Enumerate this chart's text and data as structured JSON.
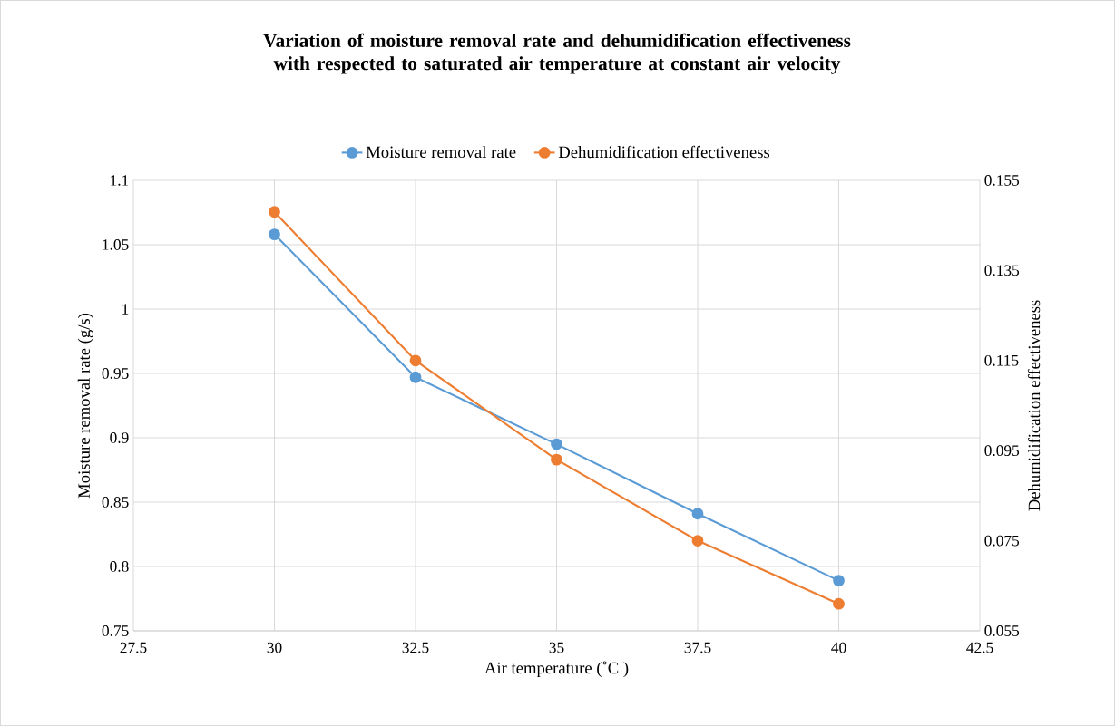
{
  "chart_data": {
    "type": "line",
    "title": "Variation of moisture removal rate and dehumidification effectiveness with respected to saturated air temperature at constant air velocity",
    "xlabel": "Air temperature (˚C )",
    "ylabel": "Moisture removal rate (g/s)",
    "y2label": "Dehumidification effectiveness",
    "x": [
      30,
      32.5,
      35,
      37.5,
      40
    ],
    "series": [
      {
        "name": "Moisture removal rate",
        "color": "#5b9bd5",
        "values": [
          1.058,
          0.947,
          0.895,
          0.841,
          0.789
        ]
      },
      {
        "name": "Dehumidification effectiveness",
        "color": "#ed7d31",
        "axis": "y2",
        "values": [
          0.148,
          0.115,
          0.093,
          0.075,
          0.061
        ]
      }
    ],
    "xlim": [
      27.5,
      42.5
    ],
    "xticks": [
      27.5,
      30,
      32.5,
      35,
      37.5,
      40,
      42.5
    ],
    "ylim": [
      0.75,
      1.1
    ],
    "yticks": [
      0.75,
      0.8,
      0.85,
      0.9,
      0.95,
      1,
      1.05,
      1.1
    ],
    "y2lim": [
      0.055,
      0.155
    ],
    "y2ticks": [
      0.055,
      0.075,
      0.095,
      0.115,
      0.135,
      0.155
    ],
    "grid": true,
    "legend": "top",
    "marker": "circle",
    "line_style": "solid"
  }
}
